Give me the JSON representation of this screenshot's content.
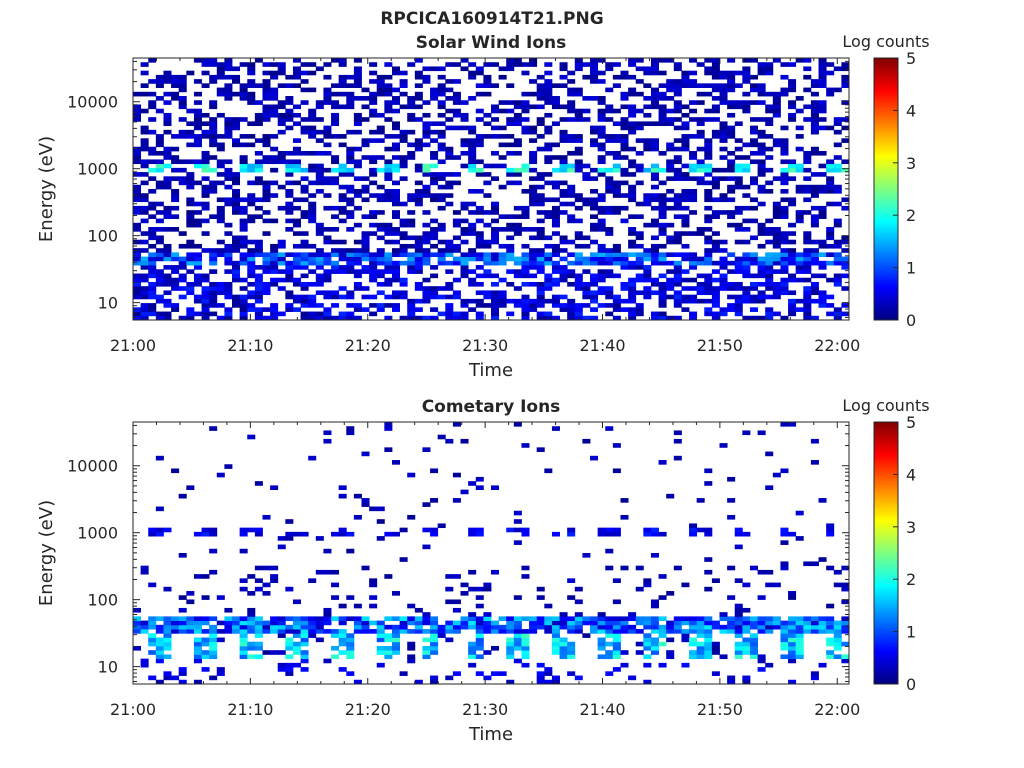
{
  "figure_title": "RPCICA160914T21.PNG",
  "colorscale": [
    "#00007f",
    "#0000ff",
    "#007fff",
    "#00ffff",
    "#7fff7f",
    "#ffff00",
    "#ff7f00",
    "#ff0000",
    "#7f0000"
  ],
  "chart_data": [
    {
      "type": "heatmap",
      "title": "Solar Wind Ions",
      "xlabel": "Time",
      "ylabel": "Energy (eV)",
      "xlim": [
        "21:00",
        "22:01"
      ],
      "xticks": [
        "21:00",
        "21:10",
        "21:20",
        "21:30",
        "21:40",
        "21:50",
        "22:00"
      ],
      "ylim": [
        5.5,
        45000
      ],
      "yscale": "log",
      "yticks": [
        10,
        100,
        1000,
        10000
      ],
      "yticklabels": [
        "10",
        "100",
        "1000",
        "10000"
      ],
      "colorbar": {
        "label": "Log counts",
        "range": [
          0,
          5
        ],
        "ticks": [
          "0",
          "1",
          "2",
          "3",
          "4",
          "5"
        ]
      },
      "features": [
        {
          "energy_eV": 1000,
          "log_counts": 2.0,
          "note": "periodic cells near 1000 eV"
        },
        {
          "energy_eV": 45,
          "log_counts": 1.3,
          "note": "band near 45 eV"
        },
        {
          "energy_eV": 25,
          "log_counts": 0.7,
          "note": "low energy blocks"
        }
      ]
    },
    {
      "type": "heatmap",
      "title": "Cometary Ions",
      "xlabel": "Time",
      "ylabel": "Energy (eV)",
      "xlim": [
        "21:00",
        "22:01"
      ],
      "xticks": [
        "21:00",
        "21:10",
        "21:20",
        "21:30",
        "21:40",
        "21:50",
        "22:00"
      ],
      "ylim": [
        5.5,
        45000
      ],
      "yscale": "log",
      "yticks": [
        10,
        100,
        1000,
        10000
      ],
      "yticklabels": [
        "10",
        "100",
        "1000",
        "10000"
      ],
      "colorbar": {
        "label": "Log counts",
        "range": [
          0,
          5
        ],
        "ticks": [
          "0",
          "1",
          "2",
          "3",
          "4",
          "5"
        ]
      },
      "features": [
        {
          "energy_eV": 45,
          "log_counts": 1.5,
          "note": "dense band 35-55 eV"
        },
        {
          "energy_eV": 25,
          "log_counts": 2.0,
          "note": "periodic bursts 15-30 eV"
        },
        {
          "energy_eV": 1000,
          "log_counts": 0.5,
          "note": "sparse cells near 1000 eV"
        }
      ]
    }
  ]
}
